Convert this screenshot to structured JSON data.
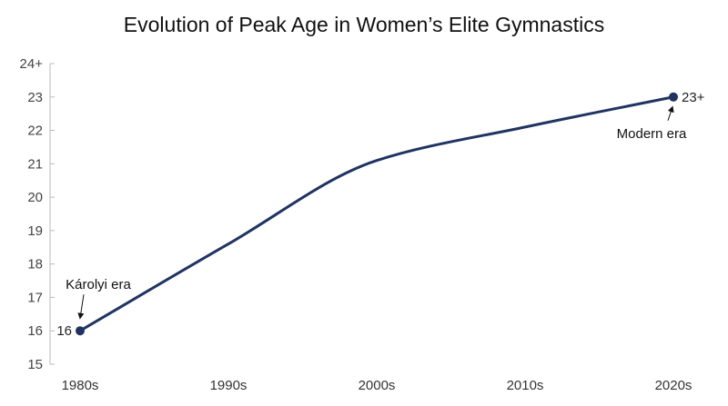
{
  "chart_data": {
    "type": "line",
    "title": "Evolution of Peak Age in Women’s Elite Gymnastics",
    "xlabel": "",
    "ylabel": "",
    "categories": [
      "1980s",
      "1990s",
      "2000s",
      "2010s",
      "2020s"
    ],
    "series": [
      {
        "values": [
          16,
          18.6,
          21.1,
          22.1,
          23
        ]
      }
    ],
    "ylim": [
      15,
      24
    ],
    "y_ticks": [
      15,
      16,
      17,
      18,
      19,
      20,
      21,
      22,
      23,
      24
    ],
    "y_tick_labels": [
      "15",
      "16",
      "17",
      "18",
      "19",
      "20",
      "21",
      "22",
      "23",
      "24+"
    ],
    "grid": false,
    "line_color": "#1f3461",
    "end_markers": [
      {
        "category": "1980s",
        "value": 16,
        "label": "16"
      },
      {
        "category": "2020s",
        "value": 23,
        "label": "23+"
      }
    ],
    "annotations": [
      {
        "text": "Károlyi era",
        "category": "1980s",
        "value": 16
      },
      {
        "text": "Modern era",
        "category": "2020s",
        "value": 23
      }
    ]
  }
}
